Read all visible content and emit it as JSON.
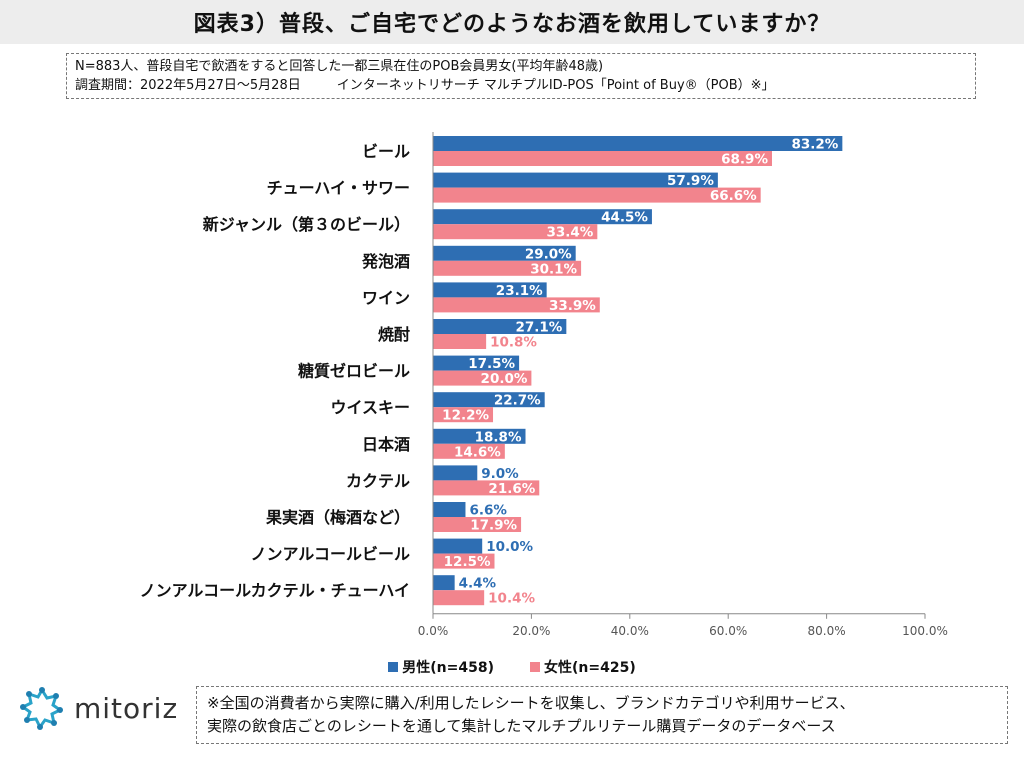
{
  "header": {
    "title": "図表3）普段、ご自宅でどのようなお酒を飲用していますか？"
  },
  "meta": {
    "line1": "N=883人、普段自宅で飲酒をすると回答した一都三県在住のPOB会員男女(平均年齢48歳)",
    "period": "調査期間：2022年5月27日～5月28日",
    "method": "インターネットリサーチ マルチプルID-POS「Point of Buy®（POB）※」"
  },
  "legend": {
    "male": "男性(n=458)",
    "female": "女性(n=425)"
  },
  "colors": {
    "male": "#2e6eb3",
    "female": "#f2848d",
    "male_label_out": "#2e6eb3",
    "female_label_out": "#f2848d",
    "axis": "#888888"
  },
  "chart_data": {
    "type": "bar",
    "orientation": "horizontal",
    "categories": [
      "ビール",
      "チューハイ・サワー",
      "新ジャンル（第３のビール）",
      "発泡酒",
      "ワイン",
      "焼酎",
      "糖質ゼロビール",
      "ウイスキー",
      "日本酒",
      "カクテル",
      "果実酒（梅酒など）",
      "ノンアルコールビール",
      "ノンアルコールカクテル・チューハイ"
    ],
    "series": [
      {
        "name": "男性(n=458)",
        "values": [
          83.2,
          57.9,
          44.5,
          29.0,
          23.1,
          27.1,
          17.5,
          22.7,
          18.8,
          9.0,
          6.6,
          10.0,
          4.4
        ]
      },
      {
        "name": "女性(n=425)",
        "values": [
          68.9,
          66.6,
          33.4,
          30.1,
          33.9,
          10.8,
          20.0,
          12.2,
          14.6,
          21.6,
          17.9,
          12.5,
          10.4
        ]
      }
    ],
    "xlim": [
      0,
      100
    ],
    "xticks": [
      "0.0%",
      "20.0%",
      "40.0%",
      "60.0%",
      "80.0%",
      "100.0%"
    ],
    "xtick_values": [
      0,
      20,
      40,
      60,
      80,
      100
    ],
    "grid": false,
    "legend_position": "bottom"
  },
  "logo": {
    "text": "mitoriz"
  },
  "footnote": {
    "line1": "※全国の消費者から実際に購入/利用したレシートを収集し、ブランドカテゴリや利用サービス、",
    "line2": "実際の飲食店ごとのレシートを通して集計したマルチプルリテール購買データのデータベース"
  }
}
